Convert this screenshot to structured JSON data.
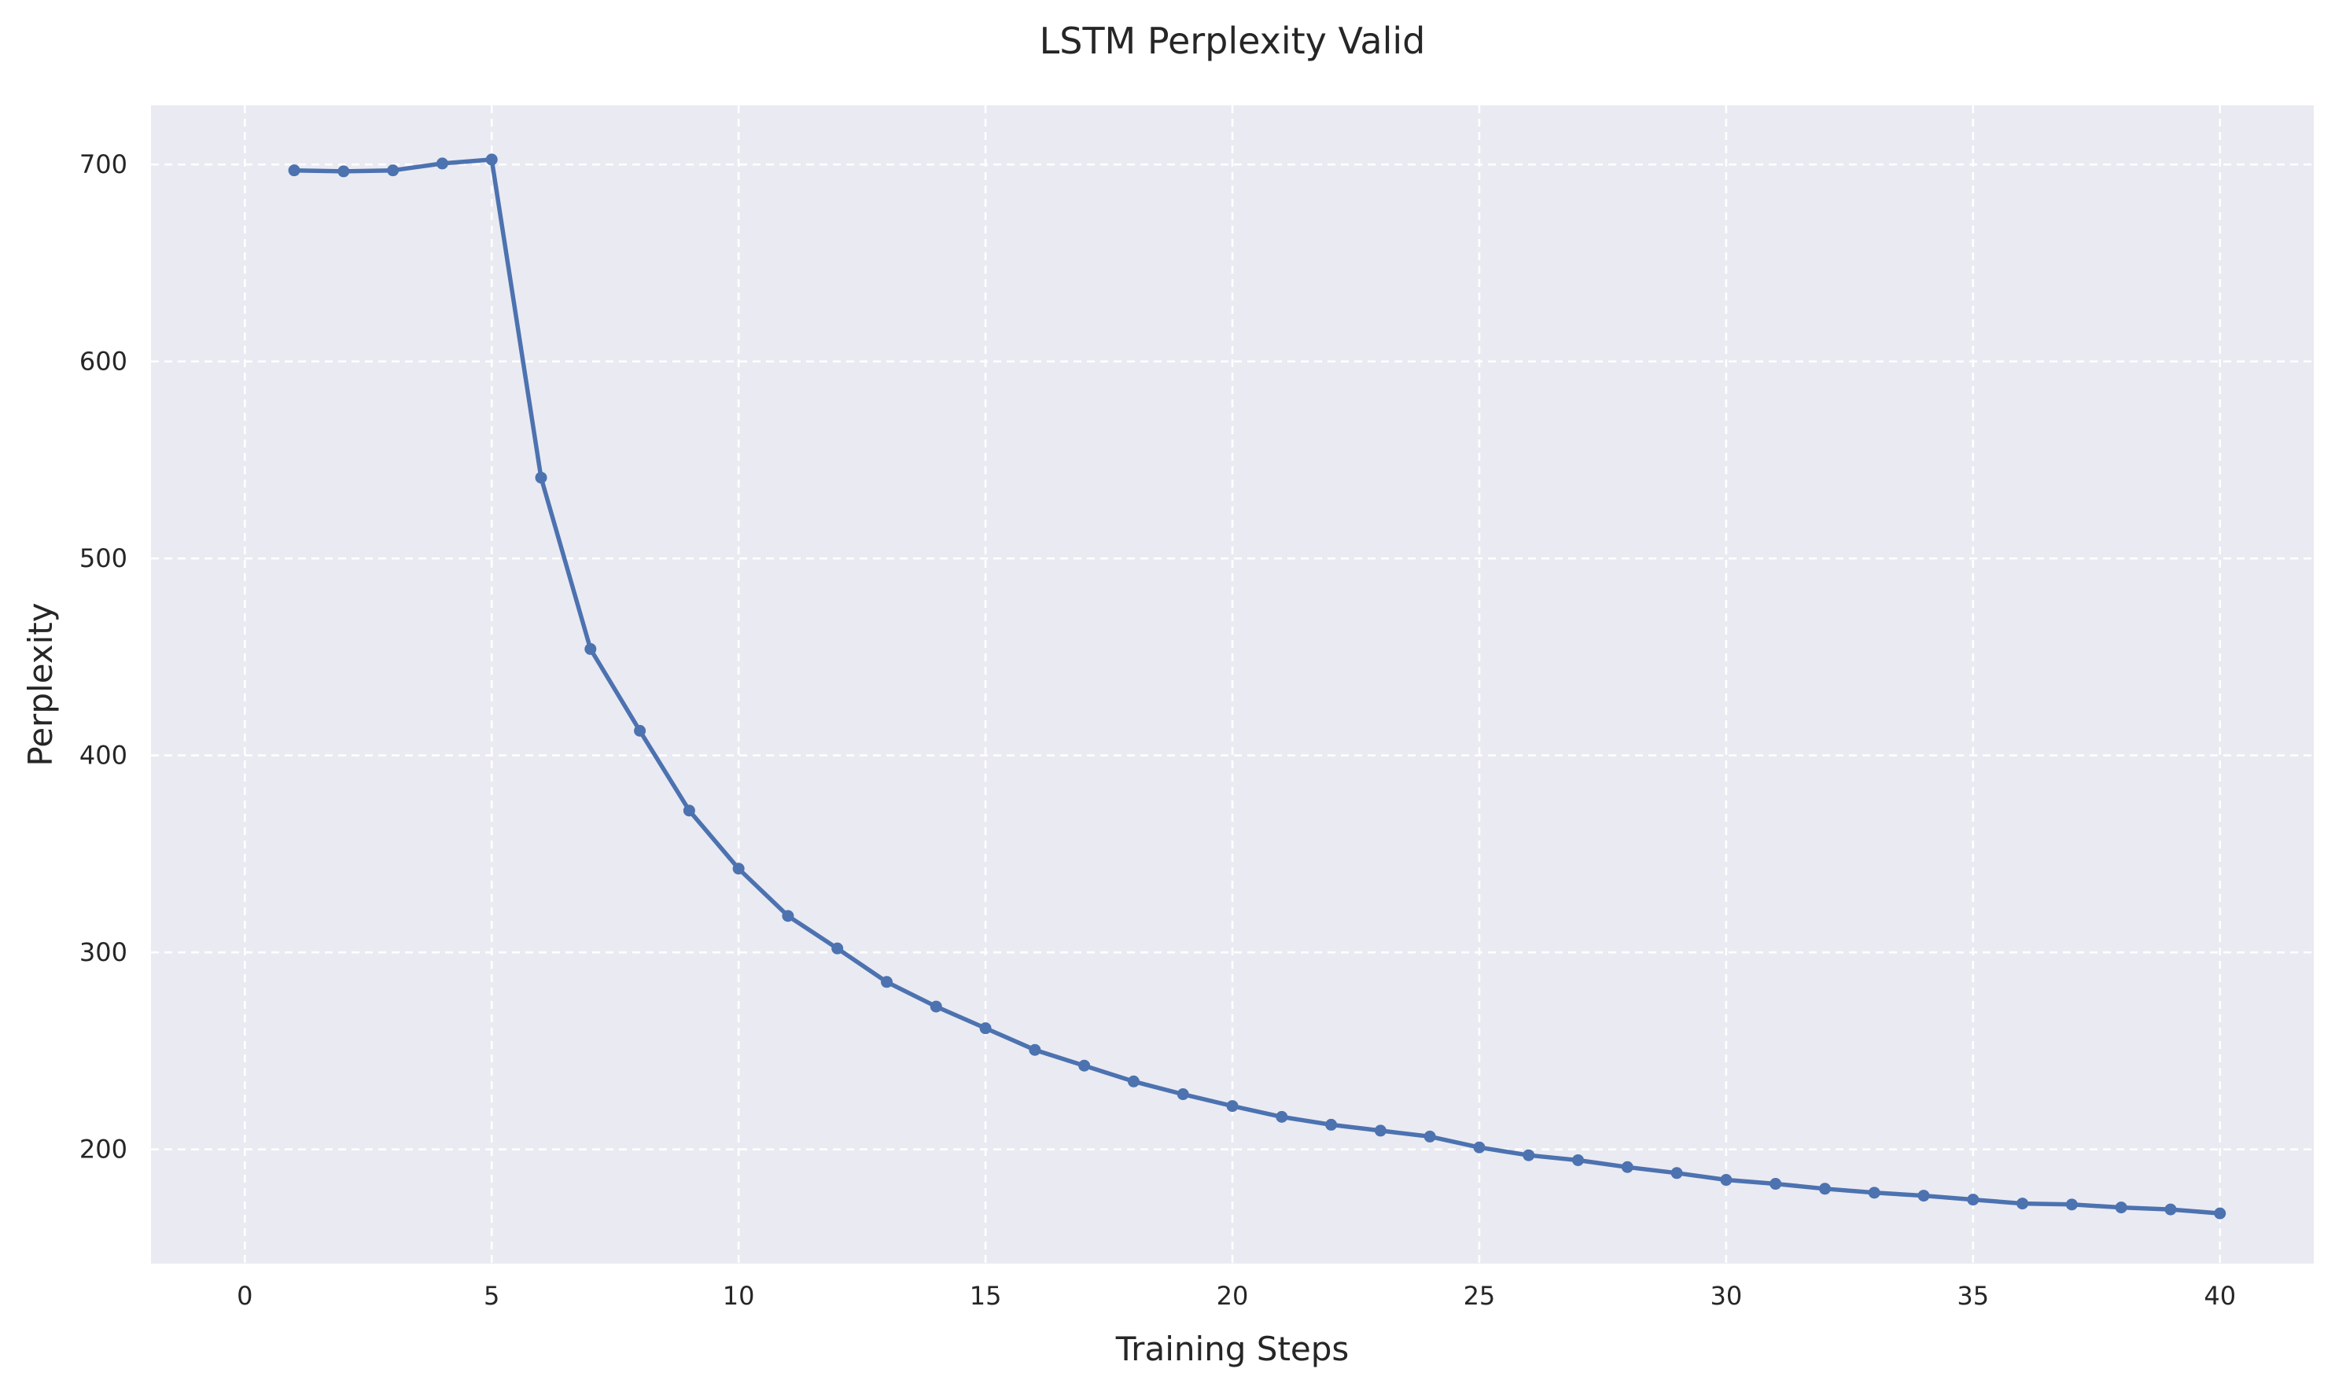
{
  "chart_data": {
    "type": "line",
    "title": "LSTM Perplexity Valid",
    "xlabel": "Training Steps",
    "ylabel": "Perplexity",
    "xlim": [
      -1.9,
      41.9
    ],
    "ylim": [
      142,
      730
    ],
    "xticks": [
      0,
      5,
      10,
      15,
      20,
      25,
      30,
      35,
      40
    ],
    "yticks": [
      200,
      300,
      400,
      500,
      600,
      700
    ],
    "grid": true,
    "legend": "none",
    "x": [
      1,
      2,
      3,
      4,
      5,
      6,
      7,
      8,
      9,
      10,
      11,
      12,
      13,
      14,
      15,
      16,
      17,
      18,
      19,
      20,
      21,
      22,
      23,
      24,
      25,
      26,
      27,
      28,
      29,
      30,
      31,
      32,
      33,
      34,
      35,
      36,
      37,
      38,
      39,
      40
    ],
    "series": [
      {
        "values": [
          697,
          696.5,
          697,
          700.5,
          702.5,
          541,
          454,
          412.5,
          372,
          342.5,
          318.5,
          302,
          285,
          272.5,
          261.5,
          250.5,
          242.5,
          234.5,
          228,
          222,
          216.5,
          212.5,
          209.5,
          206.5,
          201,
          197,
          194.5,
          191,
          188,
          184.5,
          182.5,
          180,
          178,
          176.5,
          174.5,
          172.5,
          172,
          170.5,
          169.5,
          167.5
        ],
        "color": "#4c72b0"
      }
    ],
    "colors": {
      "plot_background": "#eaeaf2",
      "grid": "#ffffff",
      "text": "#262626"
    }
  }
}
